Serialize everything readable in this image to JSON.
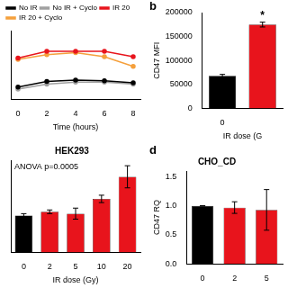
{
  "chart_data": [
    {
      "type": "line",
      "x_label": "Time (hours)",
      "x": [
        0,
        2,
        4,
        6,
        8
      ],
      "xlim": [
        -0.5,
        8.5
      ],
      "xticks": [
        0,
        2,
        4,
        6,
        8
      ],
      "ylim": [
        0,
        100
      ],
      "tick_labels": "x",
      "grid": false,
      "legend": "top-left",
      "marker": "circle",
      "series": [
        {
          "name": "No IR",
          "color": "#000000",
          "values": [
            18,
            26,
            28,
            27,
            24
          ]
        },
        {
          "name": "No IR + Cyclo",
          "color": "#a0a0a0",
          "values": [
            15,
            22,
            25,
            25,
            22
          ]
        },
        {
          "name": "IR 20",
          "color": "#e8141c",
          "values": [
            60,
            70,
            70,
            70,
            62
          ]
        },
        {
          "name": "IR 20 + Cyclo",
          "color": "#f5a03c",
          "values": [
            58,
            65,
            68,
            62,
            48
          ]
        }
      ]
    },
    {
      "type": "bar",
      "panel_label": "b",
      "y_label": "CD47 MFI",
      "x_label": "IR dose (G",
      "categories": [
        "0",
        null
      ],
      "values": [
        68000,
        175000
      ],
      "errors": [
        3000,
        5000
      ],
      "colors": [
        "#000000",
        "#e8141c"
      ],
      "ylim": [
        0,
        200000
      ],
      "yticks": [
        0,
        50000,
        100000,
        150000,
        200000
      ],
      "annotation": "*",
      "grid": false
    },
    {
      "type": "bar",
      "title": "HEK293",
      "annotation": "ANOVA p=0.0005",
      "x_label": "IR dose (Gy)",
      "categories": [
        "0",
        "2",
        "5",
        "10",
        "20"
      ],
      "values": [
        1.0,
        1.1,
        1.05,
        1.45,
        2.05
      ],
      "errors": [
        0.05,
        0.05,
        0.15,
        0.1,
        0.3
      ],
      "colors": [
        "#000000",
        "#e8141c",
        "#e8141c",
        "#e8141c",
        "#e8141c"
      ],
      "ylim": [
        0,
        2.5
      ],
      "tick_labels": "x",
      "grid": false
    },
    {
      "type": "bar",
      "panel_label": "d",
      "title": "CHO_CD",
      "y_label": "CD47 RQ",
      "categories": [
        "0",
        "2",
        "5"
      ],
      "values": [
        1.0,
        0.97,
        0.93
      ],
      "errors": [
        0.0,
        0.1,
        0.35
      ],
      "colors": [
        "#000000",
        "#e8141c",
        "#e8141c"
      ],
      "ylim": [
        0,
        1.6
      ],
      "yticks": [
        {
          "value": 0,
          "label": "0.0"
        },
        {
          "value": 0.5,
          "label": "0.5"
        },
        {
          "value": 1,
          "label": "1.0"
        },
        {
          "value": 1.5,
          "label": "1.5"
        }
      ],
      "grid": false
    }
  ]
}
